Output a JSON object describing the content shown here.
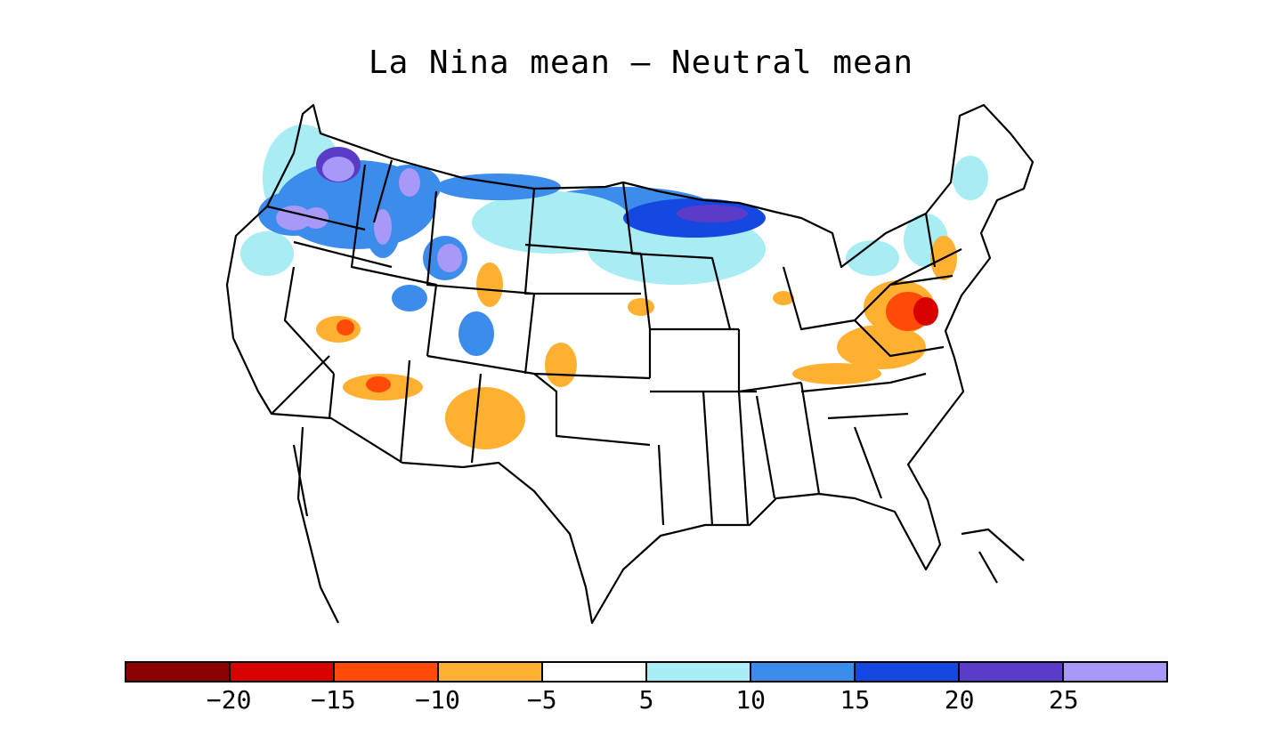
{
  "title": "La Nina mean – Neutral mean",
  "legend": {
    "colors": [
      "#8b0000",
      "#d90000",
      "#ff4a0a",
      "#ffb030",
      "#ffffff",
      "#a8ecf4",
      "#3c8ceb",
      "#1448e0",
      "#5a3cc8",
      "#a898f8"
    ],
    "tick_labels": [
      "−20",
      "−15",
      "−10",
      "−5",
      "5",
      "10",
      "15",
      "20",
      "25"
    ]
  },
  "map": {
    "region": "contiguous United States",
    "feature_colors": {
      "outline": "#000000"
    }
  }
}
